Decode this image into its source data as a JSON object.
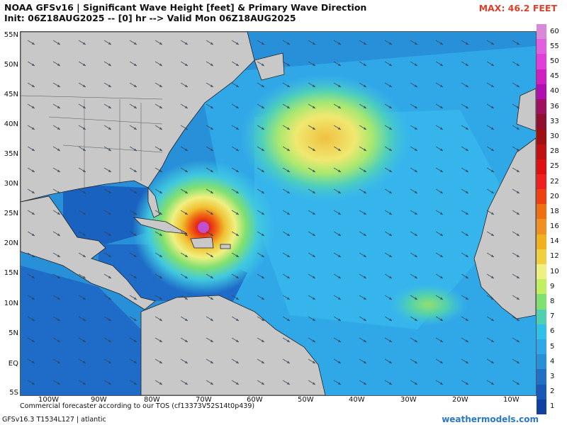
{
  "header": {
    "title": "NOAA GFSv16 | Significant Wave Height [feet] & Primary Wave Direction",
    "subtitle": "Init: 06Z18AUG2025 -- [0] hr --> Valid Mon 06Z18AUG2025",
    "max_label": "MAX: 46.2 FEET"
  },
  "axes": {
    "lat_labels": [
      "55N",
      "50N",
      "45N",
      "40N",
      "35N",
      "30N",
      "25N",
      "20N",
      "15N",
      "10N",
      "5N",
      "EQ",
      "5S"
    ],
    "lon_labels": [
      "100W",
      "90W",
      "80W",
      "70W",
      "60W",
      "50W",
      "40W",
      "30W",
      "20W",
      "10W"
    ]
  },
  "colorbar": {
    "labels": [
      "60",
      "55",
      "50",
      "45",
      "40",
      "36",
      "33",
      "30",
      "28",
      "25",
      "22",
      "20",
      "18",
      "16",
      "14",
      "12",
      "10",
      "9",
      "8",
      "7",
      "6",
      "5",
      "4",
      "3",
      "2",
      "1"
    ],
    "colors": [
      "#d88ad8",
      "#e060e0",
      "#e040d8",
      "#d020c0",
      "#b010b0",
      "#a01060",
      "#901030",
      "#a01010",
      "#c01010",
      "#e01010",
      "#f02020",
      "#f04010",
      "#f07010",
      "#f09020",
      "#f0b020",
      "#f0d040",
      "#f0f080",
      "#c0f060",
      "#80e070",
      "#50d0b0",
      "#30c0e8",
      "#30a8e8",
      "#2890d8",
      "#2070c8",
      "#1858b8",
      "#1040a0"
    ]
  },
  "footer": {
    "note": "Commercial forecaster according to our TOS (cf13373V52S14t0p439)",
    "model": "GFSv16.3 T1534L127 | atlantic",
    "brand": "weathermodels.com"
  },
  "map_data": {
    "variable": "Significant Wave Height [feet]",
    "max_value": 46.2,
    "features": [
      "hurricane wave max near 23N 70W",
      "swell area near 38N 45W",
      "moderate waves near 10N 27W"
    ]
  }
}
